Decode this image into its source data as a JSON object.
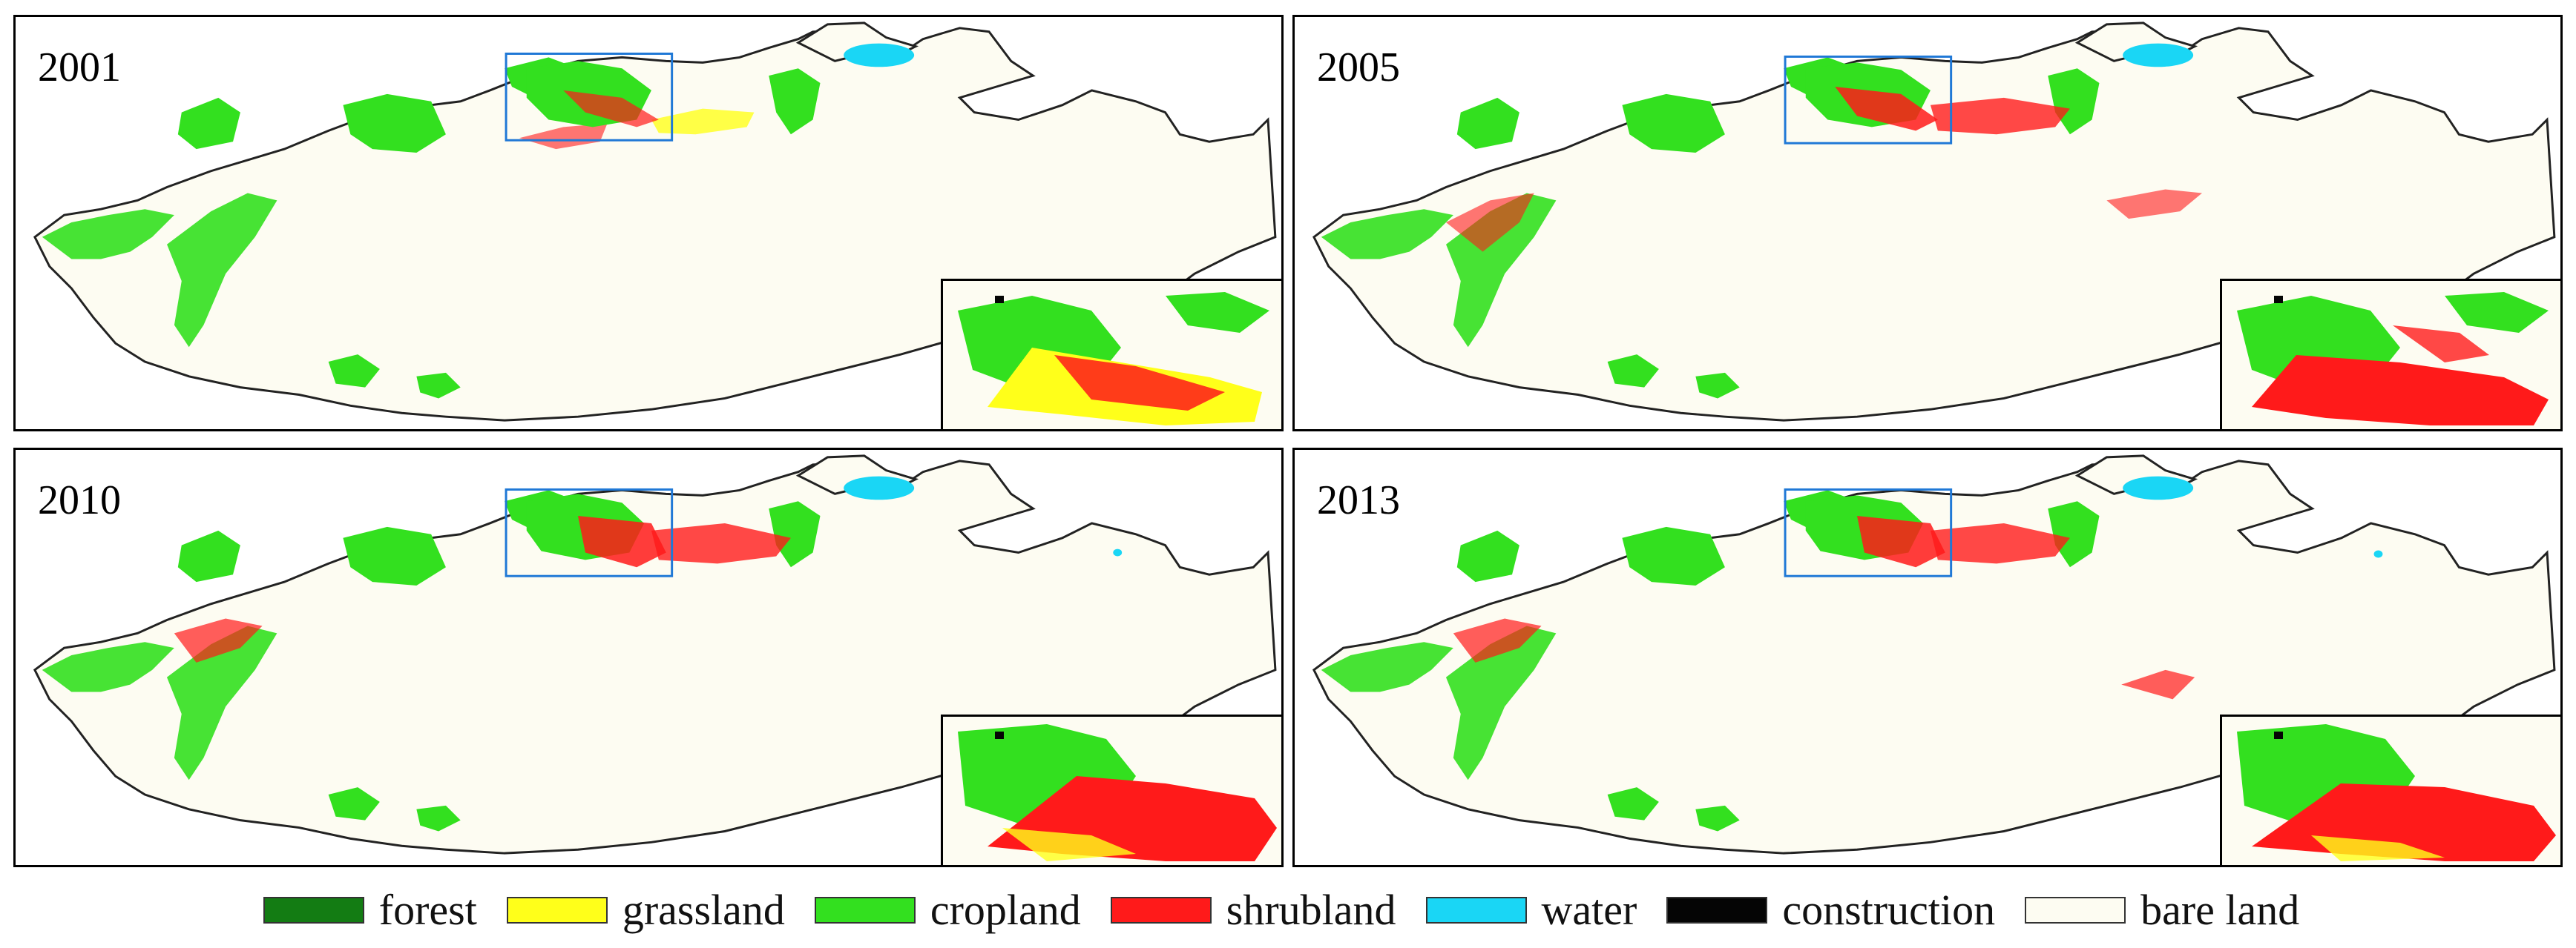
{
  "panels": [
    {
      "year": "2001"
    },
    {
      "year": "2005"
    },
    {
      "year": "2010"
    },
    {
      "year": "2013"
    }
  ],
  "colors": {
    "outline": "#222222",
    "highlight_box": "#1f78d6",
    "bare_land_fill": "#fdfcf2"
  },
  "legend": [
    {
      "label": "forest",
      "color": "#137c13"
    },
    {
      "label": "grassland",
      "color": "#ffff1a"
    },
    {
      "label": "cropland",
      "color": "#33e01f"
    },
    {
      "label": "shrubland",
      "color": "#ff1a1a"
    },
    {
      "label": "water",
      "color": "#1ad6f5"
    },
    {
      "label": "construction",
      "color": "#050505"
    },
    {
      "label": "bare land",
      "color": "#fdfcf2"
    }
  ]
}
